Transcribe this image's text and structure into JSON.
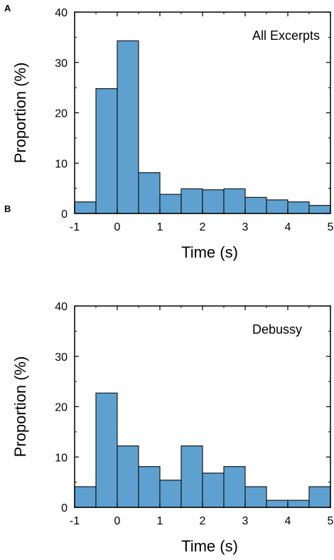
{
  "style": {
    "bar_fill": "#5ea1d1",
    "bar_stroke": "#1a1a1a",
    "axis_color": "#000000"
  },
  "chart_data": [
    {
      "type": "bar",
      "panel": "A",
      "annotation": "All Excerpts",
      "xlabel": "Time (s)",
      "ylabel": "Proportion (%)",
      "xlim": [
        -1,
        5
      ],
      "ylim": [
        0,
        40
      ],
      "xticks": [
        "-1",
        "0",
        "1",
        "2",
        "3",
        "4",
        "5"
      ],
      "yticks": [
        "0",
        "10",
        "20",
        "30",
        "40"
      ],
      "bin_width": 0.5,
      "bins_start": [
        -1,
        -0.5,
        0,
        0.5,
        1,
        1.5,
        2,
        2.5,
        3,
        3.5,
        4,
        4.5
      ],
      "values": [
        2.3,
        24.8,
        34.3,
        8.1,
        3.8,
        4.9,
        4.7,
        4.9,
        3.2,
        2.7,
        2.3,
        1.6
      ]
    },
    {
      "type": "bar",
      "panel": "B",
      "annotation": "Debussy",
      "xlabel": "Time (s)",
      "ylabel": "Proportion (%)",
      "xlim": [
        -1,
        5
      ],
      "ylim": [
        0,
        40
      ],
      "xticks": [
        "-1",
        "0",
        "1",
        "2",
        "3",
        "4",
        "5"
      ],
      "yticks": [
        "0",
        "10",
        "20",
        "30",
        "40"
      ],
      "bin_width": 0.5,
      "bins_start": [
        -1,
        -0.5,
        0,
        0.5,
        1,
        1.5,
        2,
        2.5,
        3,
        3.5,
        4,
        4.5
      ],
      "values": [
        4.1,
        22.7,
        12.2,
        8.1,
        5.4,
        12.2,
        6.8,
        8.1,
        4.1,
        1.4,
        1.4,
        4.1
      ]
    }
  ]
}
